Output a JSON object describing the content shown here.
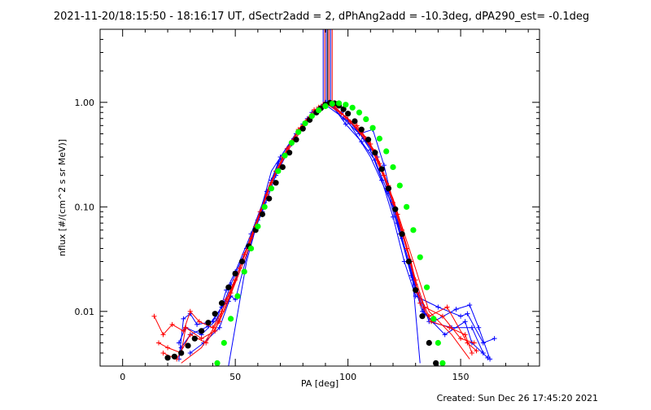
{
  "chart_data": {
    "type": "line",
    "title": "2021-11-20/18:15:50 - 18:16:17 UT, dSectr2add = 2, dPhAng2add = -10.3deg, dPA290_est= -0.1deg",
    "xlabel": "PA [deg]",
    "ylabel": "nflux [#/(cm^2 s sr MeV)]",
    "xlim": [
      -10,
      185
    ],
    "ylim": [
      0.003,
      5.0
    ],
    "yscale": "log",
    "x_ticks": [
      0,
      50,
      100,
      150
    ],
    "x_tick_labels": [
      "0",
      "50",
      "100",
      "150"
    ],
    "y_ticks": [
      0.01,
      0.1,
      1.0
    ],
    "y_tick_labels": [
      "0.01",
      "0.10",
      "1.00"
    ],
    "grid": false,
    "footer": "Created: Sun Dec 26 17:45:20 2021",
    "colors": {
      "blue": "#0000ff",
      "red": "#ff0000",
      "black": "#000000",
      "green": "#00ff00"
    },
    "vertical_lines": {
      "x_center": 91,
      "offsets": [
        -2,
        -1.3,
        -0.6,
        0,
        0.6,
        1.3,
        2
      ],
      "colors": [
        "#0000ff",
        "#ff0000",
        "#0000ff",
        "#000000",
        "#ff0000",
        "#0000ff",
        "#ff0000"
      ],
      "y_from": 5.0,
      "y_to": 1.0
    },
    "series": [
      {
        "color": "#0000ff",
        "marker": "plus",
        "points": [
          [
            25,
            0.0035
          ],
          [
            27,
            0.0085
          ],
          [
            30,
            0.0095
          ],
          [
            33,
            0.0075
          ],
          [
            40,
            0.008
          ],
          [
            45,
            0.012
          ],
          [
            48,
            0.018
          ],
          [
            55,
            0.04
          ],
          [
            62,
            0.09
          ],
          [
            68,
            0.2
          ],
          [
            75,
            0.4
          ],
          [
            83,
            0.7
          ],
          [
            90,
            1.0
          ],
          [
            97,
            0.8
          ],
          [
            104,
            0.55
          ],
          [
            110,
            0.35
          ],
          [
            115,
            0.18
          ],
          [
            120,
            0.08
          ],
          [
            125,
            0.03
          ],
          [
            130,
            0.014
          ],
          [
            140,
            0.011
          ],
          [
            150,
            0.009
          ],
          [
            153,
            0.0095
          ],
          [
            160,
            0.005
          ],
          [
            165,
            0.0055
          ]
        ]
      },
      {
        "color": "#0000ff",
        "marker": "plus",
        "points": [
          [
            25,
            0.005
          ],
          [
            28,
            0.007
          ],
          [
            35,
            0.006
          ],
          [
            42,
            0.0085
          ],
          [
            46,
            0.016
          ],
          [
            50,
            0.024
          ],
          [
            57,
            0.055
          ],
          [
            64,
            0.14
          ],
          [
            70,
            0.3
          ],
          [
            77,
            0.5
          ],
          [
            84,
            0.8
          ],
          [
            91,
            1.0
          ],
          [
            98,
            0.7
          ],
          [
            105,
            0.5
          ],
          [
            111,
            0.55
          ],
          [
            116,
            0.25
          ],
          [
            122,
            0.07
          ],
          [
            128,
            0.022
          ],
          [
            133,
            0.01
          ],
          [
            138,
            0.008
          ],
          [
            148,
            0.0105
          ],
          [
            154,
            0.0115
          ],
          [
            158,
            0.007
          ],
          [
            163,
            0.0035
          ]
        ]
      },
      {
        "color": "#0000ff",
        "marker": "plus",
        "points": [
          [
            26,
            0.0045
          ],
          [
            30,
            0.006
          ],
          [
            38,
            0.0072
          ],
          [
            44,
            0.011
          ],
          [
            47,
            0.0125
          ],
          [
            53,
            0.03
          ],
          [
            60,
            0.075
          ],
          [
            66,
            0.18
          ],
          [
            73,
            0.36
          ],
          [
            80,
            0.62
          ],
          [
            87,
            0.88
          ],
          [
            92,
            1.0
          ],
          [
            99,
            0.62
          ],
          [
            106,
            0.42
          ],
          [
            112,
            0.28
          ],
          [
            117,
            0.15
          ],
          [
            123,
            0.055
          ],
          [
            129,
            0.02
          ],
          [
            134,
            0.0095
          ],
          [
            143,
            0.006
          ],
          [
            152,
            0.008
          ],
          [
            155,
            0.005
          ],
          [
            162,
            0.0036
          ]
        ]
      },
      {
        "color": "#0000ff",
        "marker": "plus",
        "points": [
          [
            30,
            0.004
          ],
          [
            36,
            0.005
          ],
          [
            43,
            0.007
          ],
          [
            48,
            0.014
          ],
          [
            50,
            0.013
          ],
          [
            56,
            0.04
          ],
          [
            63,
            0.11
          ],
          [
            69,
            0.26
          ],
          [
            76,
            0.45
          ],
          [
            82,
            0.7
          ],
          [
            89,
            0.95
          ],
          [
            93,
            0.95
          ],
          [
            100,
            0.68
          ],
          [
            107,
            0.45
          ],
          [
            113,
            0.3
          ],
          [
            118,
            0.14
          ],
          [
            124,
            0.05
          ],
          [
            130,
            0.018
          ],
          [
            136,
            0.008
          ],
          [
            146,
            0.007
          ],
          [
            155,
            0.007
          ],
          [
            160,
            0.004
          ]
        ]
      },
      {
        "color": "#0000ff",
        "marker": "none",
        "points": [
          [
            47,
            0.003
          ],
          [
            55,
            0.03
          ],
          [
            66,
            0.22
          ],
          [
            78,
            0.55
          ],
          [
            90,
            0.95
          ],
          [
            100,
            0.66
          ],
          [
            110,
            0.3
          ],
          [
            120,
            0.1
          ],
          [
            128,
            0.03
          ],
          [
            132,
            0.0032
          ]
        ]
      },
      {
        "color": "#ff0000",
        "marker": "plus",
        "points": [
          [
            14,
            0.009
          ],
          [
            18,
            0.006
          ],
          [
            22,
            0.0075
          ],
          [
            27,
            0.0065
          ],
          [
            30,
            0.01
          ],
          [
            34,
            0.008
          ],
          [
            40,
            0.007
          ],
          [
            44,
            0.01
          ],
          [
            50,
            0.02
          ],
          [
            57,
            0.05
          ],
          [
            64,
            0.13
          ],
          [
            71,
            0.3
          ],
          [
            78,
            0.55
          ],
          [
            85,
            0.85
          ],
          [
            91,
            0.95
          ],
          [
            97,
            0.78
          ],
          [
            104,
            0.6
          ],
          [
            110,
            0.4
          ],
          [
            116,
            0.2
          ],
          [
            122,
            0.085
          ],
          [
            128,
            0.03
          ],
          [
            132,
            0.012
          ],
          [
            137,
            0.008
          ],
          [
            145,
            0.007
          ],
          [
            152,
            0.006
          ],
          [
            155,
            0.004
          ]
        ]
      },
      {
        "color": "#ff0000",
        "marker": "plus",
        "points": [
          [
            16,
            0.005
          ],
          [
            20,
            0.0045
          ],
          [
            26,
            0.004
          ],
          [
            28,
            0.007
          ],
          [
            35,
            0.0055
          ],
          [
            41,
            0.0065
          ],
          [
            46,
            0.013
          ],
          [
            52,
            0.026
          ],
          [
            59,
            0.065
          ],
          [
            66,
            0.17
          ],
          [
            73,
            0.36
          ],
          [
            80,
            0.6
          ],
          [
            87,
            0.9
          ],
          [
            92,
            0.98
          ],
          [
            99,
            0.72
          ],
          [
            106,
            0.52
          ],
          [
            112,
            0.34
          ],
          [
            118,
            0.16
          ],
          [
            124,
            0.06
          ],
          [
            130,
            0.02
          ],
          [
            134,
            0.011
          ],
          [
            142,
            0.009
          ],
          [
            150,
            0.0055
          ],
          [
            156,
            0.005
          ]
        ]
      },
      {
        "color": "#ff0000",
        "marker": "plus",
        "points": [
          [
            18,
            0.004
          ],
          [
            24,
            0.0035
          ],
          [
            30,
            0.006
          ],
          [
            37,
            0.005
          ],
          [
            43,
            0.008
          ],
          [
            48,
            0.015
          ],
          [
            54,
            0.035
          ],
          [
            61,
            0.09
          ],
          [
            68,
            0.22
          ],
          [
            75,
            0.42
          ],
          [
            82,
            0.68
          ],
          [
            89,
            0.96
          ],
          [
            94,
            0.92
          ],
          [
            101,
            0.65
          ],
          [
            108,
            0.45
          ],
          [
            114,
            0.26
          ],
          [
            120,
            0.11
          ],
          [
            126,
            0.04
          ],
          [
            131,
            0.015
          ],
          [
            136,
            0.009
          ],
          [
            144,
            0.011
          ],
          [
            153,
            0.005
          ],
          [
            157,
            0.0042
          ]
        ]
      },
      {
        "color": "#ff0000",
        "marker": "none",
        "points": [
          [
            26,
            0.0032
          ],
          [
            35,
            0.0045
          ],
          [
            45,
            0.01
          ],
          [
            55,
            0.035
          ],
          [
            65,
            0.16
          ],
          [
            75,
            0.4
          ],
          [
            85,
            0.8
          ],
          [
            92,
            0.97
          ],
          [
            100,
            0.7
          ],
          [
            110,
            0.38
          ],
          [
            120,
            0.12
          ],
          [
            128,
            0.035
          ],
          [
            136,
            0.01
          ],
          [
            146,
            0.006
          ],
          [
            154,
            0.0035
          ]
        ]
      },
      {
        "color": "#000000",
        "marker": "dot",
        "points": [
          [
            20,
            0.0036
          ],
          [
            23,
            0.0037
          ],
          [
            26,
            0.004
          ],
          [
            29,
            0.0047
          ],
          [
            32,
            0.0055
          ],
          [
            35,
            0.0065
          ],
          [
            38,
            0.0078
          ],
          [
            41,
            0.0095
          ],
          [
            44,
            0.012
          ],
          [
            47,
            0.017
          ],
          [
            50,
            0.023
          ],
          [
            53,
            0.03
          ],
          [
            56,
            0.042
          ],
          [
            59,
            0.06
          ],
          [
            62,
            0.085
          ],
          [
            65,
            0.12
          ],
          [
            68,
            0.17
          ],
          [
            71,
            0.24
          ],
          [
            74,
            0.33
          ],
          [
            77,
            0.44
          ],
          [
            80,
            0.56
          ],
          [
            83,
            0.68
          ],
          [
            86,
            0.8
          ],
          [
            88,
            0.88
          ],
          [
            90,
            0.95
          ],
          [
            92,
            0.99
          ],
          [
            94,
            0.98
          ],
          [
            96,
            0.93
          ],
          [
            98,
            0.86
          ],
          [
            100,
            0.78
          ],
          [
            103,
            0.66
          ],
          [
            106,
            0.55
          ],
          [
            109,
            0.44
          ],
          [
            112,
            0.33
          ],
          [
            115,
            0.23
          ],
          [
            118,
            0.15
          ],
          [
            121,
            0.095
          ],
          [
            124,
            0.055
          ],
          [
            127,
            0.03
          ],
          [
            130,
            0.016
          ],
          [
            133,
            0.009
          ],
          [
            136,
            0.005
          ],
          [
            139,
            0.0032
          ]
        ]
      },
      {
        "color": "#00ff00",
        "marker": "dot",
        "points": [
          [
            42,
            0.0032
          ],
          [
            45,
            0.005
          ],
          [
            48,
            0.0085
          ],
          [
            51,
            0.014
          ],
          [
            54,
            0.024
          ],
          [
            57,
            0.04
          ],
          [
            60,
            0.065
          ],
          [
            63,
            0.1
          ],
          [
            66,
            0.15
          ],
          [
            69,
            0.22
          ],
          [
            72,
            0.31
          ],
          [
            75,
            0.41
          ],
          [
            78,
            0.52
          ],
          [
            81,
            0.63
          ],
          [
            84,
            0.74
          ],
          [
            87,
            0.84
          ],
          [
            90,
            0.92
          ],
          [
            93,
            0.97
          ],
          [
            96,
            0.98
          ],
          [
            99,
            0.95
          ],
          [
            102,
            0.89
          ],
          [
            105,
            0.8
          ],
          [
            108,
            0.69
          ],
          [
            111,
            0.57
          ],
          [
            114,
            0.45
          ],
          [
            117,
            0.34
          ],
          [
            120,
            0.24
          ],
          [
            123,
            0.16
          ],
          [
            126,
            0.1
          ],
          [
            129,
            0.06
          ],
          [
            132,
            0.033
          ],
          [
            135,
            0.017
          ],
          [
            138,
            0.0085
          ],
          [
            140,
            0.005
          ],
          [
            142,
            0.0032
          ]
        ]
      }
    ]
  }
}
